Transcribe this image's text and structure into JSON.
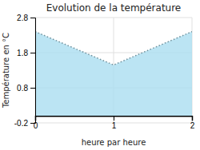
{
  "chart_data": {
    "type": "area",
    "title": "Evolution de la température",
    "x_label": "heure par heure",
    "y_label": "Température en °C",
    "x": [
      0,
      1,
      2
    ],
    "values": [
      2.4,
      1.45,
      2.4
    ],
    "xlim": [
      0,
      2
    ],
    "ylim": [
      -0.2,
      2.8
    ],
    "xticks": [
      0,
      1,
      2
    ],
    "yticks": [
      -0.2,
      0.8,
      1.8,
      2.8
    ],
    "color": "#aaddf0",
    "line_style": "dotted",
    "grid": true
  }
}
